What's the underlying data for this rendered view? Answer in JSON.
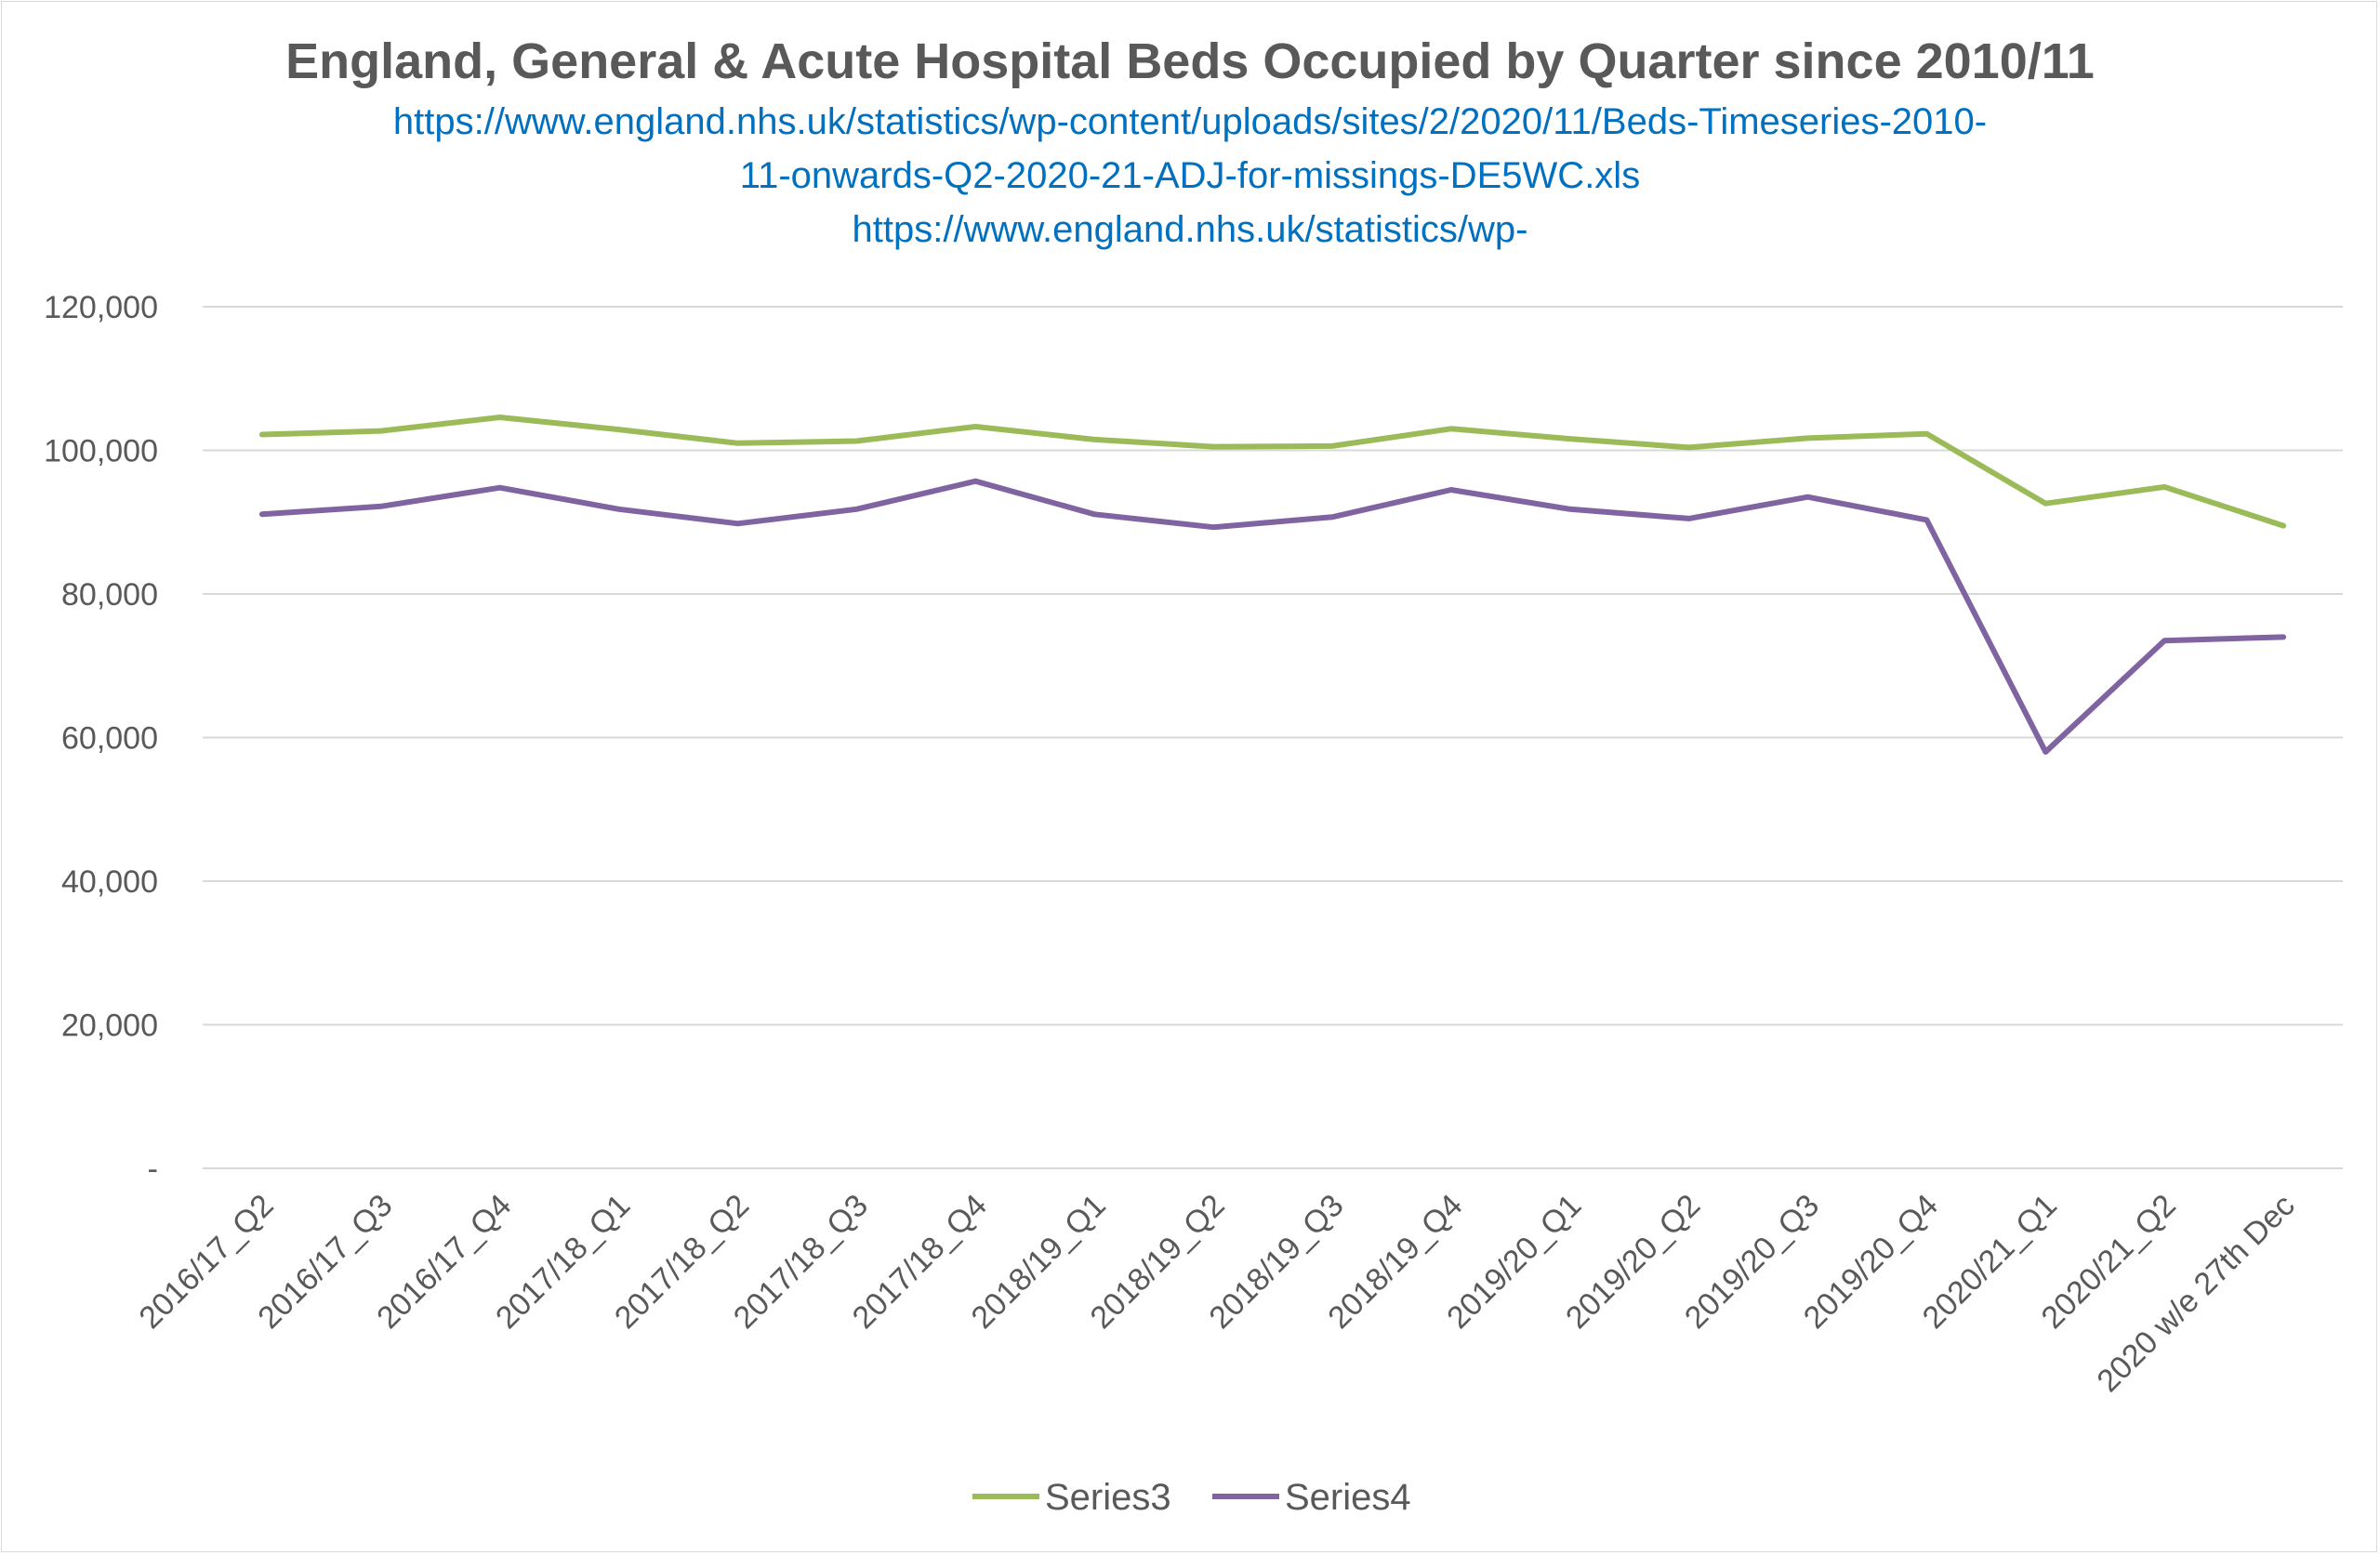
{
  "chart_data": {
    "type": "line",
    "title": "England, General & Acute Hospital Beds Occupied by Quarter since 2010/11",
    "subtitle_lines": [
      "https://www.england.nhs.uk/statistics/wp-content/uploads/sites/2/2020/11/Beds-Timeseries-2010-",
      "11-onwards-Q2-2020-21-ADJ-for-missings-DE5WC.xls",
      "https://www.england.nhs.uk/statistics/wp-"
    ],
    "categories": [
      "2016/17_Q2",
      "2016/17_Q3",
      "2016/17_Q4",
      "2017/18_Q1",
      "2017/18_Q2",
      "2017/18_Q3",
      "2017/18_Q4",
      "2018/19_Q1",
      "2018/19_Q2",
      "2018/19_Q3",
      "2018/19_Q4",
      "2019/20_Q1",
      "2019/20_Q2",
      "2019/20_Q3",
      "2019/20_Q4",
      "2020/21_Q1",
      "2020/21_Q2",
      "2020 w/e 27th Dec"
    ],
    "series": [
      {
        "name": "Series3",
        "color": "#9bbb59",
        "values": [
          102200,
          102700,
          104600,
          102900,
          101000,
          101300,
          103300,
          101500,
          100500,
          100600,
          103000,
          101600,
          100400,
          101700,
          102300,
          92600,
          94900,
          89500
        ]
      },
      {
        "name": "Series4",
        "color": "#8064a2",
        "values": [
          91100,
          92200,
          94800,
          91800,
          89800,
          91800,
          95700,
          91100,
          89300,
          90700,
          94500,
          91800,
          90500,
          93500,
          90300,
          58000,
          73500,
          74000
        ]
      }
    ],
    "yticks": [
      "-",
      "20,000",
      "40,000",
      "60,000",
      "80,000",
      "100,000",
      "120,000"
    ],
    "ylim": [
      0,
      120000
    ],
    "grid": "horizontal",
    "legend": "bottom",
    "colors": {
      "grid": "#d9d9d9",
      "text": "#595959",
      "link": "#0070c0"
    }
  }
}
